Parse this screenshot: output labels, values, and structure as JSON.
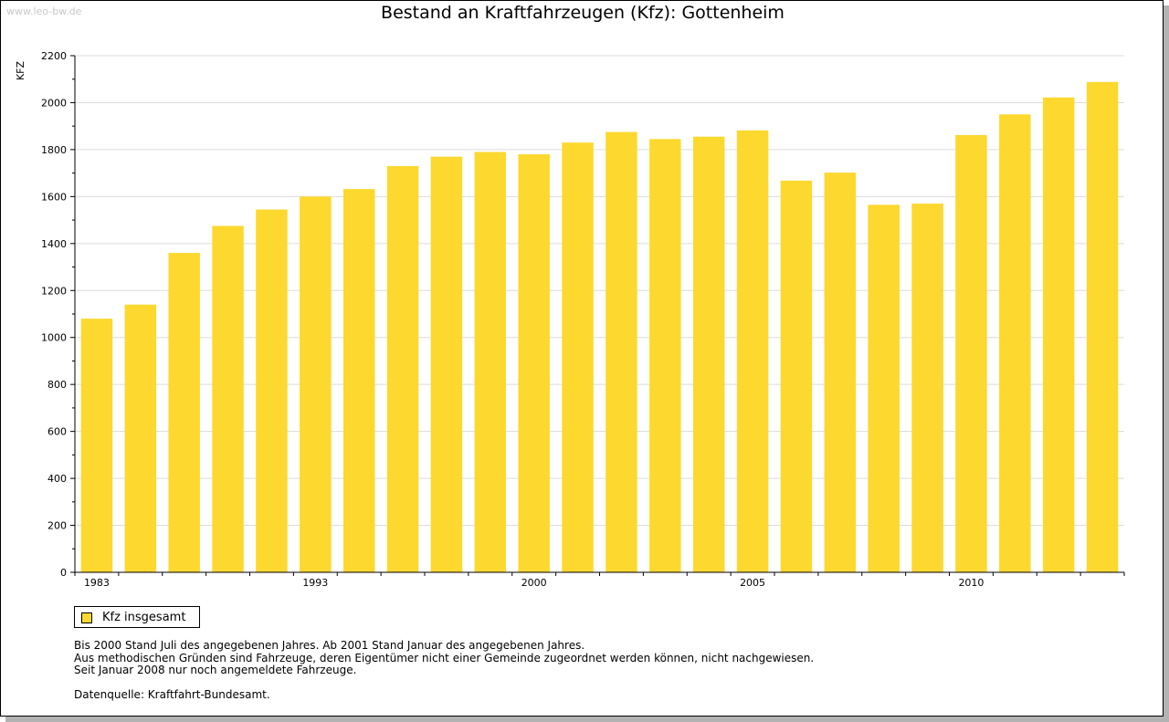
{
  "watermark": "www.leo-bw.de",
  "chart_data": {
    "type": "bar",
    "title": "Bestand an Kraftfahrzeugen (Kfz): Gottenheim",
    "xlabel": "",
    "ylabel": "KFZ",
    "ylim": [
      0,
      2200
    ],
    "yticks": [
      0,
      200,
      400,
      600,
      800,
      1000,
      1200,
      1400,
      1600,
      1800,
      2000,
      2200
    ],
    "grid": true,
    "legend_position": "bottom-left",
    "categories": [
      "1983",
      "",
      "",
      "",
      "",
      "1993",
      "",
      "",
      "",
      "",
      "2000",
      "",
      "",
      "",
      "",
      "2005",
      "",
      "",
      "",
      "",
      "2010",
      "",
      "",
      ""
    ],
    "series": [
      {
        "name": "Kfz insgesamt",
        "color": "#fdd82e",
        "values": [
          1080,
          1140,
          1360,
          1475,
          1545,
          1600,
          1632,
          1730,
          1770,
          1790,
          1780,
          1830,
          1875,
          1845,
          1855,
          1882,
          1668,
          1702,
          1565,
          1570,
          1862,
          1950,
          2022,
          2088
        ]
      }
    ]
  },
  "legend": {
    "label": "Kfz insgesamt",
    "color": "#fdd82e"
  },
  "notes": [
    "Bis 2000 Stand Juli des angegebenen Jahres. Ab 2001 Stand Januar des angegebenen Jahres.",
    "Aus methodischen Gründen sind Fahrzeuge, deren Eigentümer nicht einer Gemeinde zugeordnet werden können, nicht nachgewiesen.",
    "Seit Januar 2008 nur noch angemeldete Fahrzeuge."
  ],
  "source": "Datenquelle: Kraftfahrt-Bundesamt."
}
